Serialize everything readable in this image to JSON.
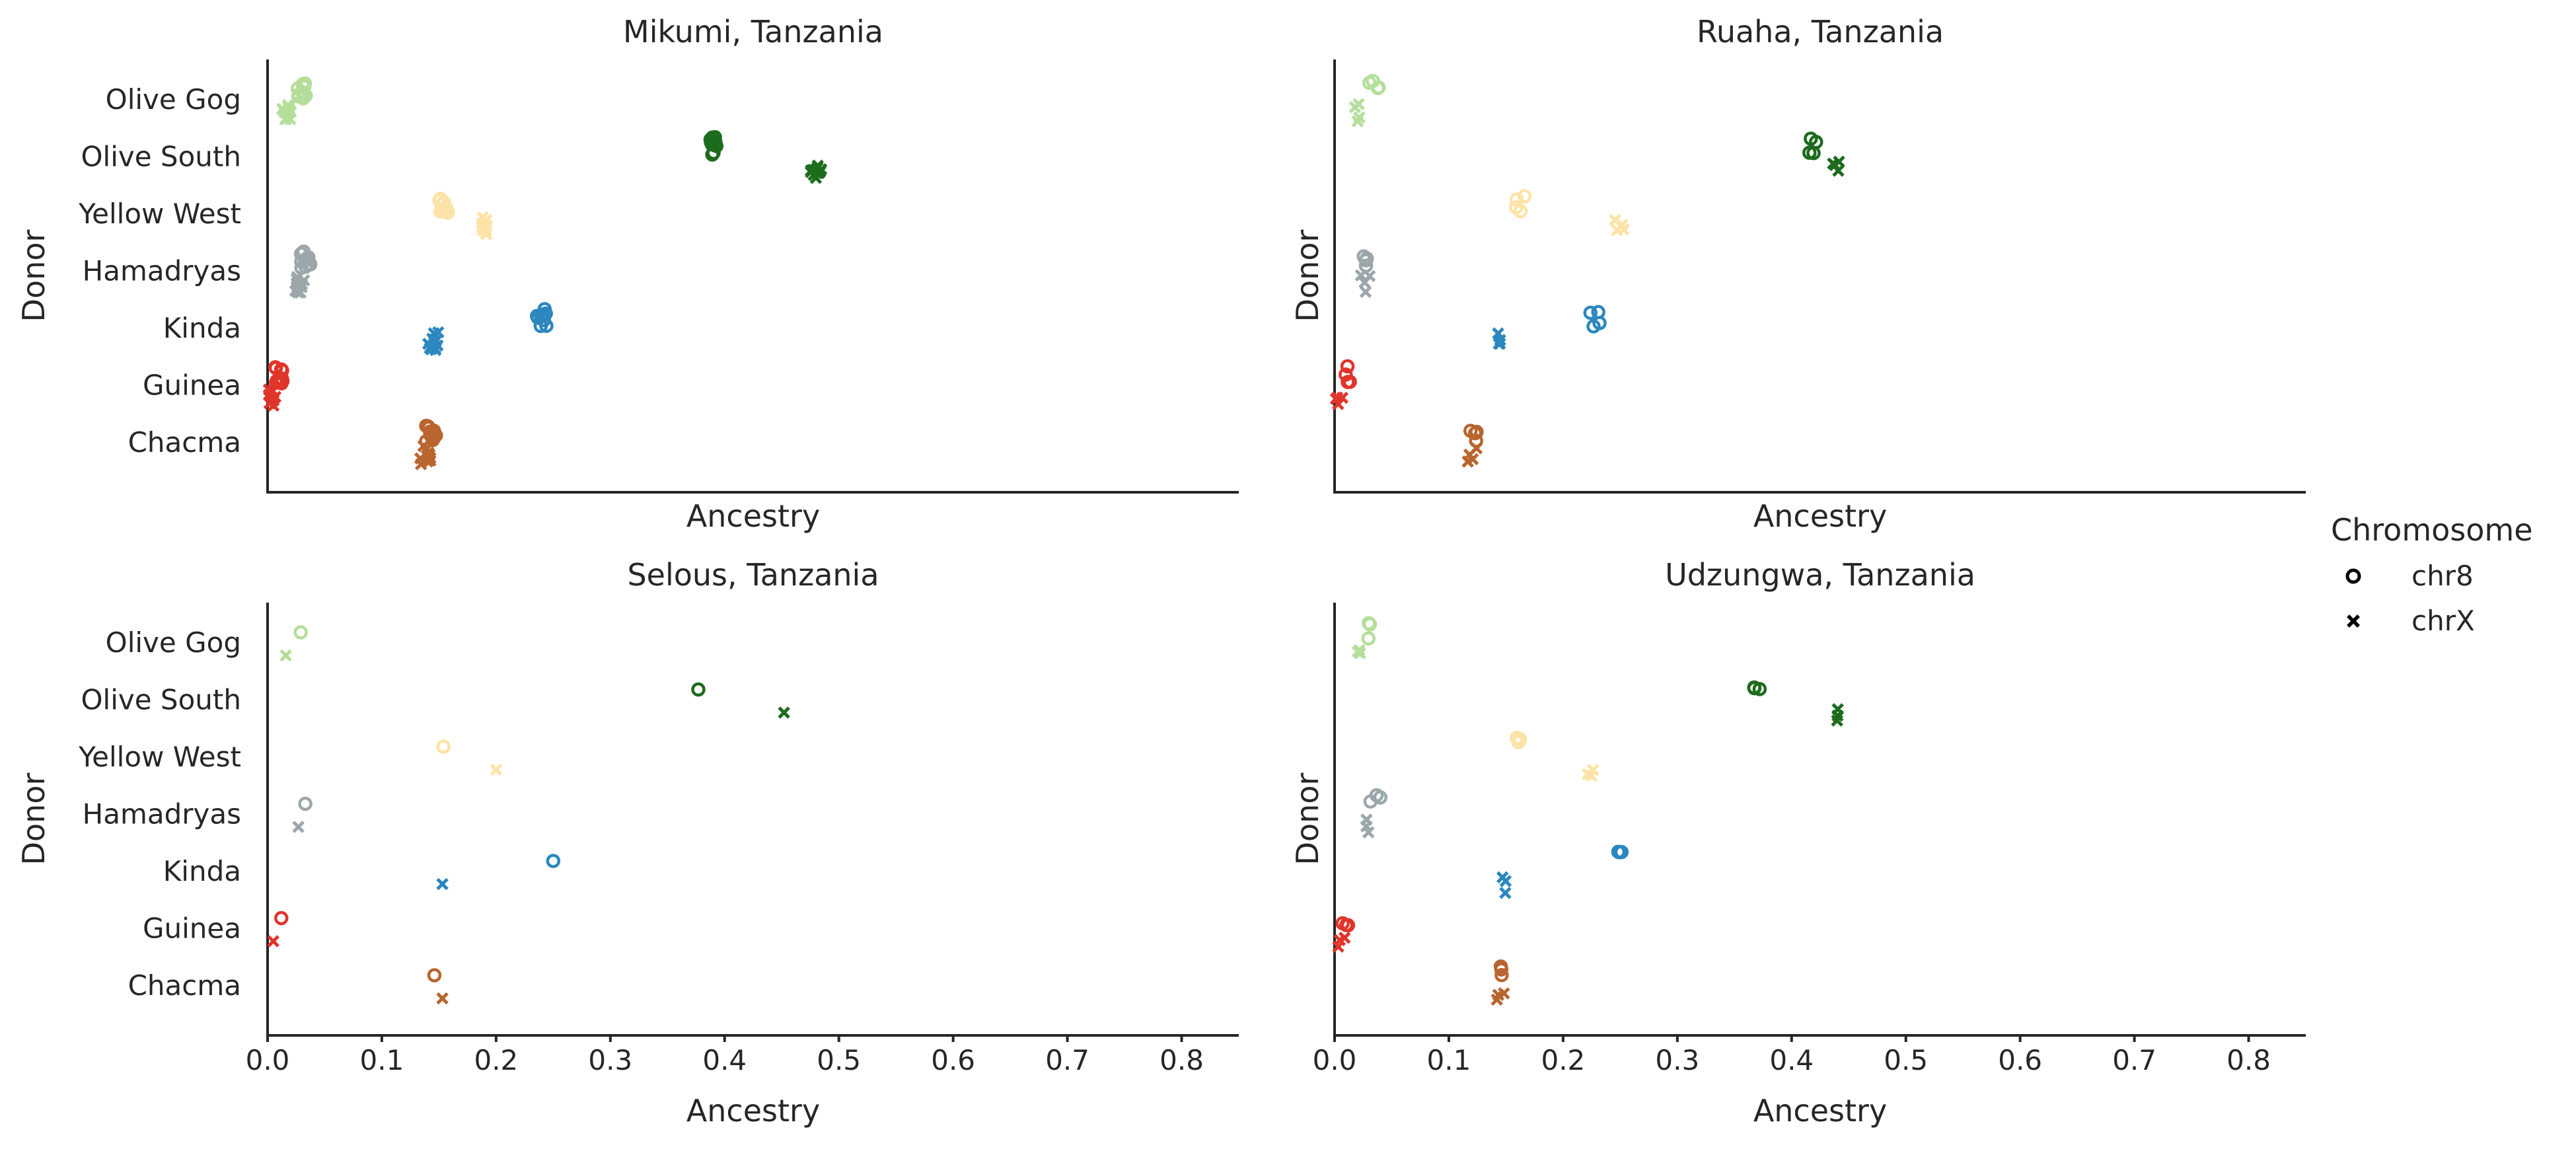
{
  "chart_data": [
    {
      "type": "scatter",
      "title": "Mikumi, Tanzania",
      "xlabel": "Ancestry",
      "ylabel": "Donor",
      "xlim": [
        0,
        0.85
      ],
      "categories": [
        "Olive Gog",
        "Olive South",
        "Yellow West",
        "Hamadryas",
        "Kinda",
        "Guinea",
        "Chacma"
      ],
      "series": [
        {
          "name": "chr8",
          "values": [
            0.03,
            0.39,
            0.155,
            0.033,
            0.24,
            0.01,
            0.143
          ]
        },
        {
          "name": "chrX",
          "values": [
            0.016,
            0.48,
            0.19,
            0.028,
            0.145,
            0.004,
            0.138
          ]
        }
      ]
    },
    {
      "type": "scatter",
      "title": "Ruaha, Tanzania",
      "xlabel": "Ancestry",
      "ylabel": "Donor",
      "xlim": [
        0,
        0.85
      ],
      "categories": [
        "Olive Gog",
        "Olive South",
        "Yellow West",
        "Hamadryas",
        "Kinda",
        "Guinea",
        "Chacma"
      ],
      "series": [
        {
          "name": "chr8",
          "values": [
            0.034,
            0.42,
            0.163,
            0.03,
            0.228,
            0.011,
            0.12
          ]
        },
        {
          "name": "chrX",
          "values": [
            0.019,
            0.44,
            0.25,
            0.027,
            0.145,
            0.004,
            0.12
          ]
        }
      ]
    },
    {
      "type": "scatter",
      "title": "Selous, Tanzania",
      "xlabel": "Ancestry",
      "ylabel": "Donor",
      "xlim": [
        0,
        0.85
      ],
      "categories": [
        "Olive Gog",
        "Olive South",
        "Yellow West",
        "Hamadryas",
        "Kinda",
        "Guinea",
        "Chacma"
      ],
      "series": [
        {
          "name": "chr8",
          "values": [
            0.029,
            0.377,
            0.154,
            0.033,
            0.25,
            0.012,
            0.146
          ]
        },
        {
          "name": "chrX",
          "values": [
            0.016,
            0.452,
            0.2,
            0.027,
            0.153,
            0.005,
            0.153
          ]
        }
      ]
    },
    {
      "type": "scatter",
      "title": "Udzungwa, Tanzania",
      "xlabel": "Ancestry",
      "ylabel": "Donor",
      "xlim": [
        0,
        0.85
      ],
      "categories": [
        "Olive Gog",
        "Olive South",
        "Yellow West",
        "Hamadryas",
        "Kinda",
        "Guinea",
        "Chacma"
      ],
      "series": [
        {
          "name": "chr8",
          "values": [
            0.033,
            0.37,
            0.16,
            0.036,
            0.248,
            0.011,
            0.145
          ]
        },
        {
          "name": "chrX",
          "values": [
            0.018,
            0.438,
            0.222,
            0.029,
            0.151,
            0.005,
            0.145
          ]
        }
      ]
    }
  ],
  "x_ticks": [
    "0.0",
    "0.1",
    "0.2",
    "0.3",
    "0.4",
    "0.5",
    "0.6",
    "0.7",
    "0.8"
  ],
  "donor_colors": {
    "Olive Gog": "#b5de9b",
    "Olive South": "#1d6b1d",
    "Yellow West": "#fde3a7",
    "Hamadryas": "#9ba7ab",
    "Kinda": "#2b87be",
    "Guinea": "#e0352b",
    "Chacma": "#b9652f"
  },
  "legend": {
    "title": "Chromosome",
    "items": [
      {
        "label": "chr8",
        "marker": "circle"
      },
      {
        "label": "chrX",
        "marker": "cross"
      }
    ]
  }
}
